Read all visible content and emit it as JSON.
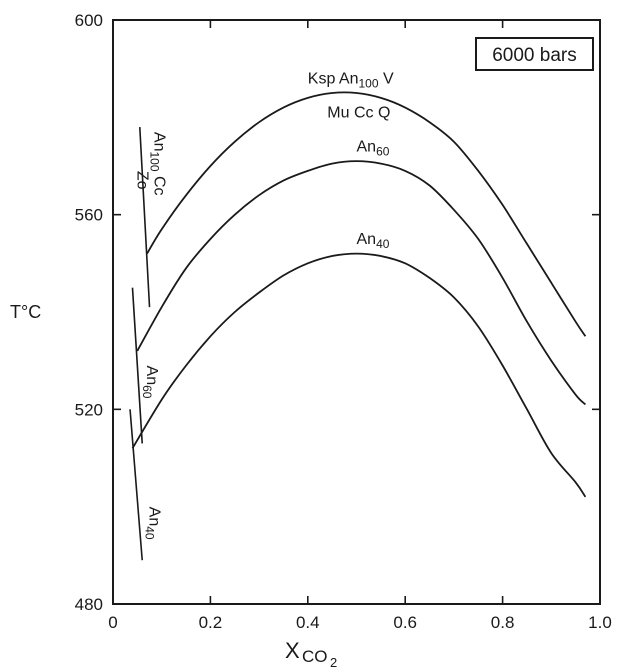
{
  "chart_data": {
    "type": "line",
    "xlabel_main": "X",
    "xlabel_sub": "CO",
    "xlabel_sub2": "2",
    "ylabel": "T°C",
    "xlim": [
      0,
      1.0
    ],
    "ylim": [
      480,
      600
    ],
    "x_ticks": [
      0,
      0.2,
      0.4,
      0.6,
      0.8,
      1.0
    ],
    "x_tick_labels": [
      "0",
      "0.2",
      "0.4",
      "0.6",
      "0.8",
      "1.0"
    ],
    "y_ticks": [
      480,
      520,
      560,
      600
    ],
    "y_tick_labels": [
      "480",
      "520",
      "560",
      "600"
    ],
    "grid": false,
    "annotation_box": "6000 bars",
    "series": [
      {
        "x": [
          0.07,
          0.1,
          0.15,
          0.2,
          0.25,
          0.3,
          0.35,
          0.4,
          0.45,
          0.5,
          0.55,
          0.6,
          0.65,
          0.7,
          0.75,
          0.8,
          0.85,
          0.9,
          0.95,
          0.97
        ],
        "y": [
          552,
          557,
          564,
          570,
          575,
          579,
          582,
          584,
          585,
          585,
          584,
          582,
          579,
          575,
          569,
          562,
          554,
          546,
          538,
          535
        ]
      },
      {
        "x": [
          0.05,
          0.1,
          0.15,
          0.2,
          0.25,
          0.3,
          0.35,
          0.4,
          0.45,
          0.5,
          0.55,
          0.6,
          0.65,
          0.7,
          0.75,
          0.8,
          0.85,
          0.9,
          0.95,
          0.97
        ],
        "y": [
          532,
          541,
          549,
          555,
          560,
          564,
          567,
          569,
          570.5,
          571,
          570.5,
          569,
          566,
          561,
          555,
          547,
          538,
          530,
          523,
          521
        ]
      },
      {
        "x": [
          0.04,
          0.1,
          0.15,
          0.2,
          0.25,
          0.3,
          0.35,
          0.4,
          0.45,
          0.5,
          0.55,
          0.6,
          0.65,
          0.7,
          0.75,
          0.8,
          0.85,
          0.9,
          0.95,
          0.97
        ],
        "y": [
          512,
          522,
          529,
          535,
          540,
          544,
          547.5,
          550,
          551.5,
          552,
          551.5,
          550,
          547,
          543,
          537,
          529,
          520,
          511,
          505,
          502
        ]
      }
    ],
    "reaction_lines": [
      {
        "x": [
          0.055,
          0.075
        ],
        "y": [
          578,
          541
        ]
      },
      {
        "x": [
          0.04,
          0.06
        ],
        "y": [
          545,
          513
        ]
      },
      {
        "x": [
          0.035,
          0.06
        ],
        "y": [
          520,
          489
        ]
      }
    ],
    "curve_labels": [
      {
        "text": "Ksp An",
        "sub": "100",
        "suffix": " V",
        "x": 0.4,
        "y": 587
      },
      {
        "text": "Mu Cc Q",
        "x": 0.44,
        "y": 580
      },
      {
        "text": "An",
        "sub": "60",
        "x": 0.5,
        "y": 573
      },
      {
        "text": "An",
        "sub": "40",
        "x": 0.5,
        "y": 554
      }
    ],
    "rotated_labels": [
      {
        "text": "An",
        "sub": "100",
        "suffix": " Cc",
        "x": 0.085,
        "y": 577,
        "rotate": 90
      },
      {
        "text": "Zo",
        "x": 0.05,
        "y": 569,
        "rotate": 90
      },
      {
        "text": "An",
        "sub": "60",
        "x": 0.07,
        "y": 529,
        "rotate": 90
      },
      {
        "text": "An",
        "sub": "40",
        "x": 0.075,
        "y": 500,
        "rotate": 90
      }
    ]
  }
}
